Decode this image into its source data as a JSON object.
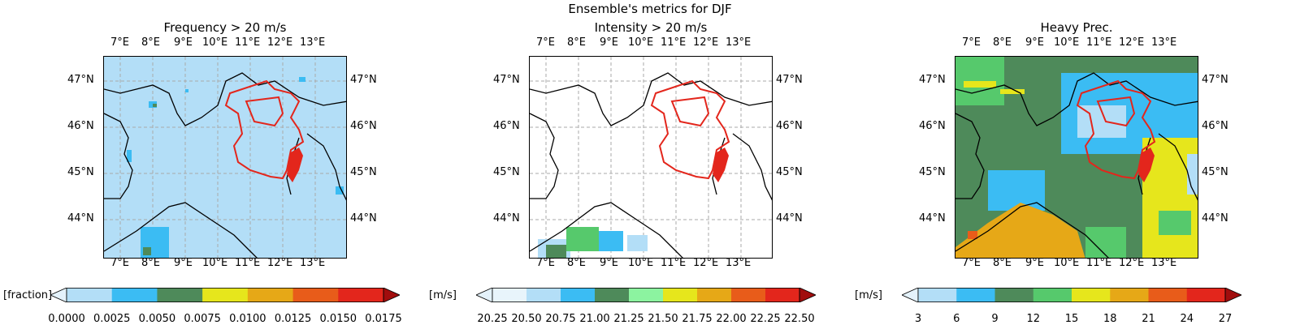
{
  "suptitle": "Ensemble's metrics for DJF",
  "lon_ticks": [
    "7°E",
    "8°E",
    "9°E",
    "10°E",
    "11°E",
    "12°E",
    "13°E"
  ],
  "lat_ticks": [
    "47°N",
    "46°N",
    "45°N",
    "44°N"
  ],
  "chart_data": [
    {
      "type": "heatmap",
      "title": "Frequency > 20 m/s",
      "colorbar_label": "[fraction]",
      "colorbar_ticks": [
        "0.0000",
        "0.0025",
        "0.0050",
        "0.0075",
        "0.0100",
        "0.0125",
        "0.0150",
        "0.0175"
      ],
      "colorbar_colors": [
        "#e4f2fb",
        "#b3def7",
        "#3bbcf3",
        "#4e8a5a",
        "#e6e61c",
        "#e6a817",
        "#e85c1a",
        "#e3261c",
        "#a10d0d"
      ],
      "xlim": [
        "6.5°E",
        "14°E"
      ],
      "ylim": [
        "43.2°N",
        "47.5°N"
      ],
      "dominant_value": "0.0000–0.0025"
    },
    {
      "type": "heatmap",
      "title": "Intensity > 20 m/s",
      "colorbar_label": "[m/s]",
      "colorbar_ticks": [
        "20.25",
        "20.50",
        "20.75",
        "21.00",
        "21.25",
        "21.50",
        "21.75",
        "22.00",
        "22.25",
        "22.50"
      ],
      "colorbar_colors": [
        "#e4f2fb",
        "#e8f4fb",
        "#b3def7",
        "#3bbcf3",
        "#4e8a5a",
        "#8cf3a0",
        "#e6e61c",
        "#e6a817",
        "#e85c1a",
        "#e3261c",
        "#a10d0d"
      ],
      "xlim": [
        "6.5°E",
        "14°E"
      ],
      "ylim": [
        "43.2°N",
        "47.5°N"
      ],
      "dominant_value": "no data"
    },
    {
      "type": "heatmap",
      "title": "Heavy Prec.",
      "colorbar_label": "[m/s]",
      "colorbar_ticks": [
        "3",
        "6",
        "9",
        "12",
        "15",
        "18",
        "21",
        "24",
        "27"
      ],
      "colorbar_colors": [
        "#e4f2fb",
        "#b3def7",
        "#3bbcf3",
        "#4e8a5a",
        "#56c96c",
        "#e6e61c",
        "#e6a817",
        "#e85c1a",
        "#e3261c",
        "#a10d0d"
      ],
      "xlim": [
        "6.5°E",
        "14°E"
      ],
      "ylim": [
        "43.2°N",
        "47.5°N"
      ],
      "dominant_value": "9–12"
    }
  ]
}
